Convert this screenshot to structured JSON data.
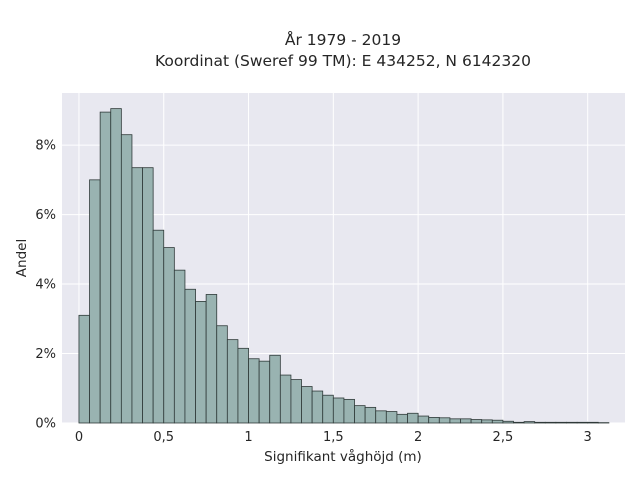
{
  "chart_data": {
    "type": "bar",
    "title_line1": "År 1979 - 2019",
    "title_line2": "Koordinat (Sweref 99 TM): E 434252, N 6142320",
    "xlabel": "Signifikant våghöjd (m)",
    "ylabel": "Andel",
    "x_ticks": [
      {
        "value": 0,
        "label": "0"
      },
      {
        "value": 0.5,
        "label": "0,5"
      },
      {
        "value": 1,
        "label": "1"
      },
      {
        "value": 1.5,
        "label": "1,5"
      },
      {
        "value": 2,
        "label": "2"
      },
      {
        "value": 2.5,
        "label": "2,5"
      },
      {
        "value": 3,
        "label": "3"
      }
    ],
    "y_ticks": [
      {
        "value": 0,
        "label": "0%"
      },
      {
        "value": 2,
        "label": "2%"
      },
      {
        "value": 4,
        "label": "4%"
      },
      {
        "value": 6,
        "label": "6%"
      },
      {
        "value": 8,
        "label": "8%"
      }
    ],
    "xlim": [
      -0.1,
      3.22
    ],
    "ylim": [
      0,
      9.5
    ],
    "bin_width": 0.0625,
    "bin_start": 0,
    "values": [
      3.1,
      7.0,
      8.95,
      9.05,
      8.3,
      7.35,
      7.35,
      5.55,
      5.05,
      4.4,
      3.85,
      3.5,
      3.7,
      2.8,
      2.4,
      2.15,
      1.85,
      1.78,
      1.95,
      1.38,
      1.25,
      1.05,
      0.92,
      0.8,
      0.72,
      0.68,
      0.5,
      0.45,
      0.35,
      0.33,
      0.25,
      0.28,
      0.2,
      0.16,
      0.15,
      0.12,
      0.12,
      0.1,
      0.09,
      0.08,
      0.05,
      0.02,
      0.04,
      0.02,
      0.02,
      0.02,
      0.02,
      0.02,
      0.02,
      0.01
    ],
    "grid": true,
    "colors": {
      "background": "#e8e8f0",
      "bar_fill": "#99b3b1",
      "bar_edge": "#2f3a39",
      "grid": "#ffffff"
    }
  }
}
